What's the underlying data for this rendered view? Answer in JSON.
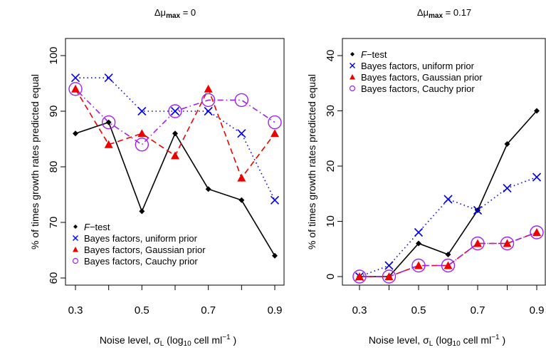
{
  "chart_data": [
    {
      "type": "line",
      "title_prefix": "Δμ",
      "title_sub": "max",
      "title_suffix": " = 0",
      "xlabel": "Noise level, σ",
      "xlabel_sub": "L",
      "xlabel_paren_open": " (log",
      "xlabel_log_sub": "10",
      "xlabel_unit": " cell ml",
      "xlabel_exp": "−1",
      "xlabel_paren_close": " )",
      "ylabel": "% of times growth rates predicted equal",
      "x": [
        0.3,
        0.4,
        0.5,
        0.6,
        0.7,
        0.8,
        0.9
      ],
      "xticks": [
        "0.3",
        "0.5",
        "0.7",
        "0.9"
      ],
      "xlim": [
        0.3,
        0.9
      ],
      "ylim": [
        60,
        100
      ],
      "yticks": [
        "60",
        "70",
        "80",
        "90",
        "100"
      ],
      "legend_position": "bottom-left",
      "series": [
        {
          "name": "F−test",
          "name_italic": "F",
          "name_rest": "−test",
          "color": "#000000",
          "marker": "diamond",
          "line": "solid",
          "values": [
            86,
            88,
            72,
            86,
            76,
            74,
            64
          ]
        },
        {
          "name": "Bayes factors, uniform prior",
          "color": "#0000ee",
          "marker": "x",
          "line": "dotted",
          "values": [
            96,
            96,
            90,
            90,
            90,
            86,
            74
          ]
        },
        {
          "name": "Bayes factors, Gaussian prior",
          "color": "#ee0000",
          "marker": "triangle",
          "line": "dashed",
          "values": [
            94,
            84,
            86,
            82,
            94,
            78,
            86
          ]
        },
        {
          "name": "Bayes factors, Cauchy prior",
          "color": "#a020f0",
          "marker": "circle",
          "line": "dotdash",
          "values": [
            94,
            88,
            84,
            90,
            92,
            92,
            88
          ]
        }
      ]
    },
    {
      "type": "line",
      "title_prefix": "Δμ",
      "title_sub": "max",
      "title_suffix": " = 0.17",
      "xlabel": "Noise level, σ",
      "xlabel_sub": "L",
      "xlabel_paren_open": " (log",
      "xlabel_log_sub": "10",
      "xlabel_unit": " cell ml",
      "xlabel_exp": "−1",
      "xlabel_paren_close": " )",
      "ylabel": "% of times growth rates predicted equal",
      "x": [
        0.3,
        0.4,
        0.5,
        0.6,
        0.7,
        0.8,
        0.9
      ],
      "xticks": [
        "0.3",
        "0.5",
        "0.7",
        "0.9"
      ],
      "xlim": [
        0.3,
        0.9
      ],
      "ylim": [
        0,
        40
      ],
      "yticks": [
        "0",
        "10",
        "20",
        "30",
        "40"
      ],
      "legend_position": "top-left",
      "series": [
        {
          "name": "F−test",
          "name_italic": "F",
          "name_rest": "−test",
          "color": "#000000",
          "marker": "diamond",
          "line": "solid",
          "values": [
            0,
            0,
            6,
            4,
            12,
            24,
            30
          ]
        },
        {
          "name": "Bayes factors, uniform prior",
          "color": "#0000ee",
          "marker": "x",
          "line": "dotted",
          "values": [
            0,
            2,
            8,
            14,
            12,
            16,
            18
          ]
        },
        {
          "name": "Bayes factors, Gaussian prior",
          "color": "#ee0000",
          "marker": "triangle",
          "line": "dashed",
          "values": [
            0,
            0,
            2,
            2,
            6,
            6,
            8
          ]
        },
        {
          "name": "Bayes factors, Cauchy prior",
          "color": "#a020f0",
          "marker": "circle",
          "line": "dotdash",
          "values": [
            0,
            0,
            2,
            2,
            6,
            6,
            8
          ]
        }
      ]
    }
  ]
}
